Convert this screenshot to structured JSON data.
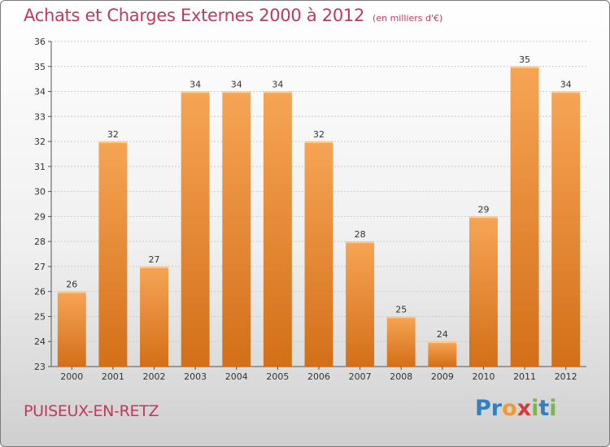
{
  "title": "Achats et Charges Externes 2000 à 2012",
  "subtitle": "(en milliers d'€)",
  "commune": "PUISEUX-EN-RETZ",
  "logo": {
    "letters": [
      {
        "char": "P",
        "color": "#2f7fc2"
      },
      {
        "char": "r",
        "color": "#2f7fc2"
      },
      {
        "char": "o",
        "color": "#f29a2e"
      },
      {
        "char": "x",
        "color": "#d63a3a"
      },
      {
        "char": "i",
        "color": "#7ab648"
      },
      {
        "char": "t",
        "color": "#2f7fc2"
      },
      {
        "char": "i",
        "color": "#7ab648"
      }
    ]
  },
  "colors": {
    "bar_top": "#f6a555",
    "bar_bottom": "#d46f18",
    "grid": "#cccccc",
    "axis": "#555555"
  },
  "chart_data": {
    "type": "bar",
    "title": "Achats et Charges Externes 2000 à 2012",
    "subtitle": "(en milliers d'€)",
    "categories": [
      "2000",
      "2001",
      "2002",
      "2003",
      "2004",
      "2005",
      "2006",
      "2007",
      "2008",
      "2009",
      "2010",
      "2011",
      "2012"
    ],
    "values": [
      26,
      32,
      27,
      34,
      34,
      34,
      32,
      28,
      25,
      24,
      29,
      35,
      34
    ],
    "ylim": [
      23,
      36
    ],
    "yticks": [
      23,
      24,
      25,
      26,
      27,
      28,
      29,
      30,
      31,
      32,
      33,
      34,
      35,
      36
    ],
    "grid": true,
    "xlabel": "",
    "ylabel": ""
  }
}
